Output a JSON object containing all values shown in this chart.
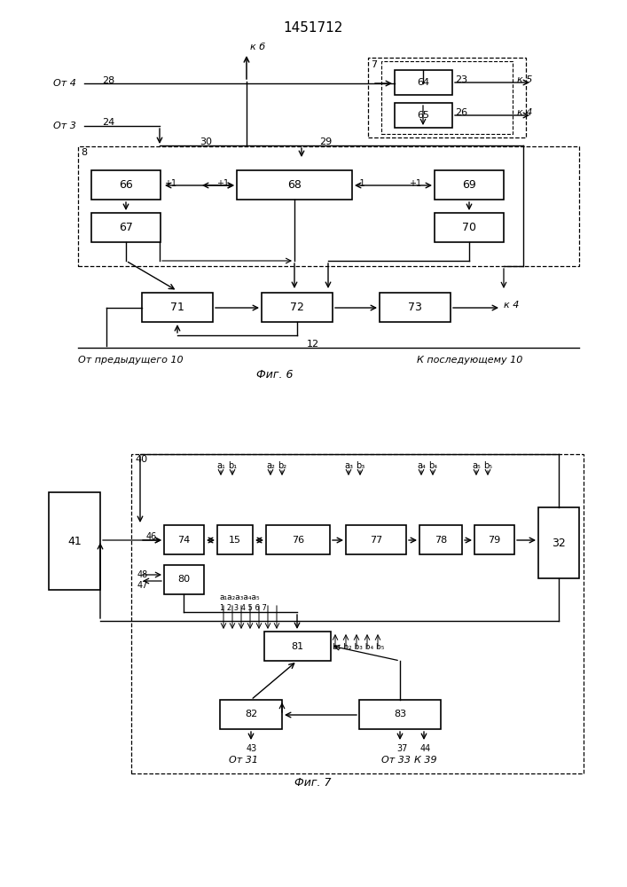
{
  "title": "1451712",
  "fig6_label": "Фиг. 6",
  "fig7_label": "Фиг. 7",
  "background_color": "#ffffff"
}
